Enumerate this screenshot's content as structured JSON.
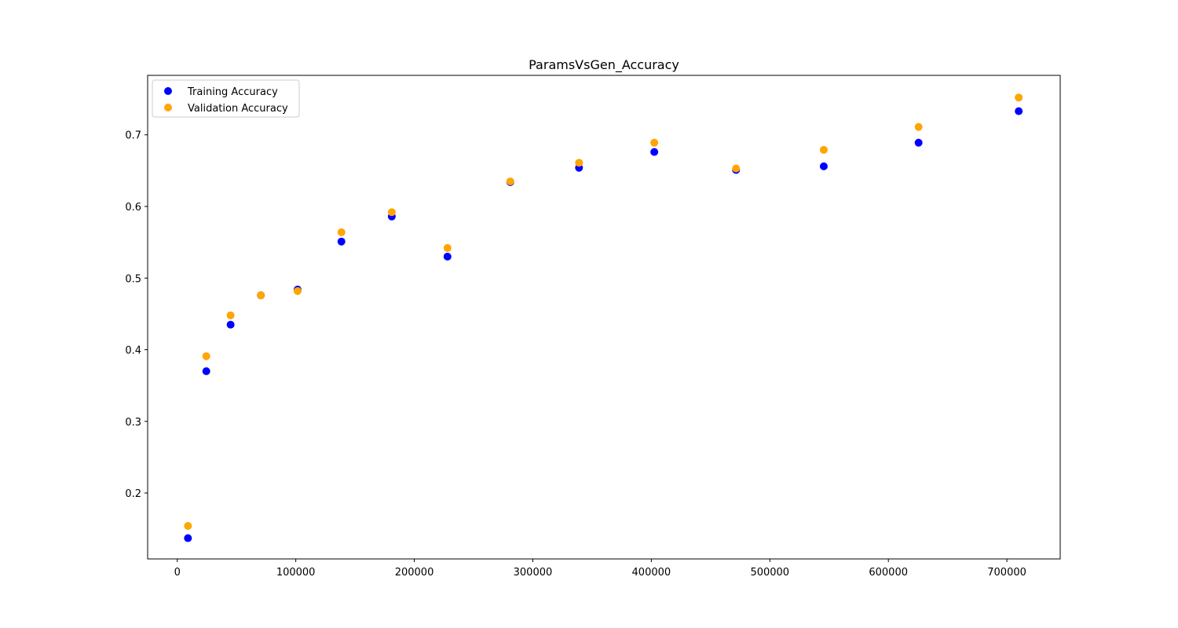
{
  "chart_data": {
    "type": "scatter",
    "title": "ParamsVsGen_Accuracy",
    "xlabel": "",
    "ylabel": "",
    "xlim": [
      -25000,
      745000
    ],
    "ylim": [
      0.108,
      0.783
    ],
    "x_ticks": [
      0,
      100000,
      200000,
      300000,
      400000,
      500000,
      600000,
      700000
    ],
    "y_ticks": [
      0.2,
      0.3,
      0.4,
      0.5,
      0.6,
      0.7
    ],
    "grid": false,
    "legend_position": "top-left",
    "series": [
      {
        "name": "Training Accuracy",
        "color": "#0000ff",
        "x": [
          9000,
          24500,
          45000,
          70500,
          101500,
          138500,
          181000,
          228000,
          281000,
          339000,
          402500,
          471500,
          545500,
          625500,
          710000
        ],
        "y": [
          0.137,
          0.37,
          0.435,
          0.476,
          0.484,
          0.551,
          0.586,
          0.53,
          0.634,
          0.654,
          0.676,
          0.651,
          0.656,
          0.689,
          0.733
        ]
      },
      {
        "name": "Validation Accuracy",
        "color": "#ffa500",
        "x": [
          9000,
          24500,
          45000,
          70500,
          101500,
          138500,
          181000,
          228000,
          281000,
          339000,
          402500,
          471500,
          545500,
          625500,
          710000
        ],
        "y": [
          0.154,
          0.391,
          0.448,
          0.476,
          0.482,
          0.564,
          0.592,
          0.542,
          0.635,
          0.661,
          0.689,
          0.653,
          0.679,
          0.711,
          0.752
        ]
      }
    ]
  }
}
